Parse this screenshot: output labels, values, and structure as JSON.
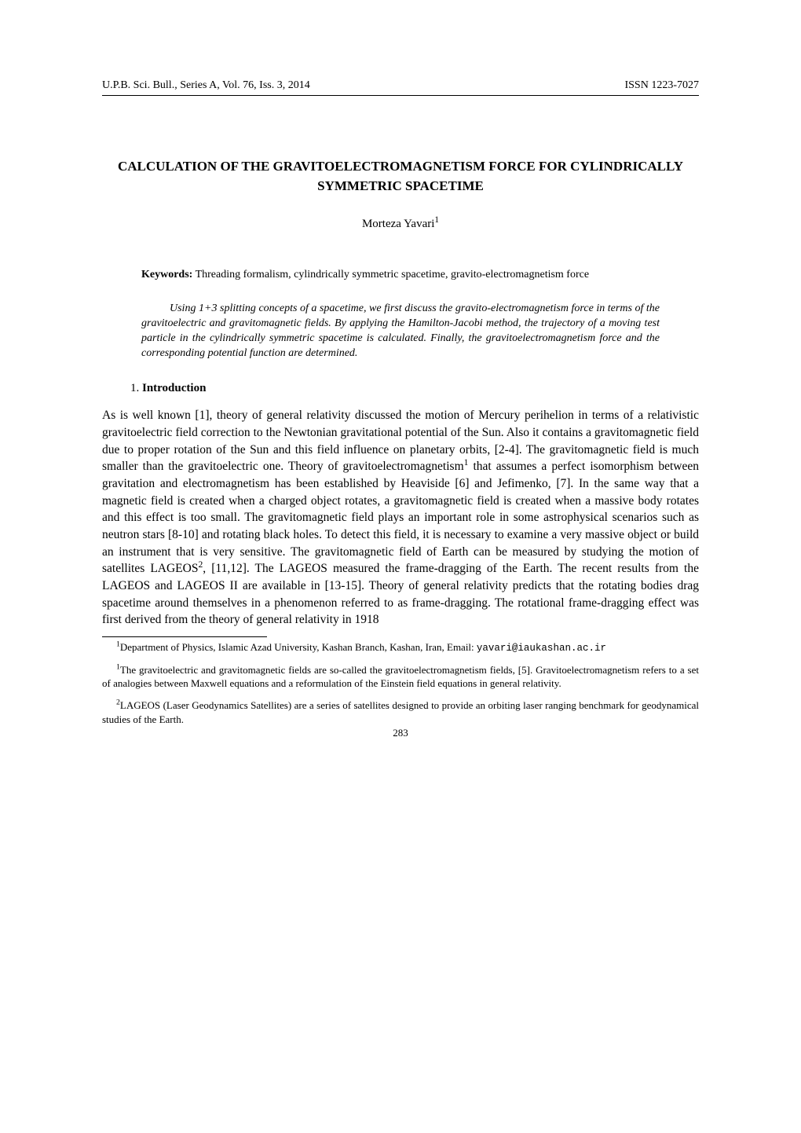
{
  "header": {
    "left": "U.P.B. Sci. Bull., Series A, Vol. 76, Iss. 3, 2014",
    "right": "ISSN 1223-7027"
  },
  "title": "CALCULATION OF THE GRAVITOELECTROMAGNETISM FORCE FOR CYLINDRICALLY SYMMETRIC SPACETIME",
  "author": "Morteza Yavari",
  "author_sup": "1",
  "keywords_label": "Keywords:",
  "keywords_text": " Threading formalism, cylindrically symmetric spacetime, gravito-electromagnetism force",
  "abstract": "Using 1+3 splitting concepts of a spacetime, we first discuss the gravito-electromagnetism force in terms of the gravitoelectric and gravitomagnetic fields. By applying the Hamilton-Jacobi method, the trajectory of a moving test particle in the cylindrically symmetric spacetime is calculated. Finally, the gravitoelectromagnetism force and the corresponding potential function are determined.",
  "section": {
    "num": "1.",
    "title": "Introduction"
  },
  "body_a": "As is well known [1], theory of general relativity discussed the motion of Mercury perihelion in terms of a relativistic gravitoelectric field correction to the Newtonian gravitational potential of the Sun. Also it contains a gravitomagnetic field due to proper rotation of the Sun and this field influence on planetary orbits, [2-4]. The gravitomagnetic field is much smaller than the gravitoelectric one. Theory of gravitoelectromagnetism",
  "body_b": " that assumes a perfect isomorphism between gravitation and electromagnetism has been established by Heaviside [6] and Jefimenko, [7]. In the same way that a magnetic field is created when a charged object rotates, a gravitomagnetic field is created when a massive body rotates and this effect is too small. The gravitomagnetic field plays an important role in some astrophysical scenarios such as neutron stars [8-10] and rotating black holes. To detect this field, it is necessary to examine a very massive object or build an instrument that is very sensitive. The gravitomagnetic field of Earth can be measured by studying the motion of satellites LAGEOS",
  "body_c": ", [11,12]. The LAGEOS measured the frame-dragging of the Earth. The recent results from the LAGEOS and LAGEOS II are available in [13-15]. Theory of general relativity predicts that the rotating bodies drag spacetime around themselves in a phenomenon referred to as frame-dragging. The rotational frame-dragging effect was first derived from the theory of general relativity in 1918",
  "sup_1": "1",
  "sup_2": "2",
  "footnotes": {
    "affil_sup": "1",
    "affil_text": "Department of Physics, Islamic Azad University, Kashan Branch, Kashan, Iran, Email: ",
    "affil_email": "yavari@iaukashan.ac.ir",
    "fn1_sup": "1",
    "fn1_text": "The gravitoelectric and gravitomagnetic fields are so-called the gravitoelectromagnetism fields, [5]. Gravitoelectromagnetism refers to a set of analogies between Maxwell equations and a reformulation of the Einstein field equations in general relativity.",
    "fn2_sup": "2",
    "fn2_text": "LAGEOS (Laser Geodynamics Satellites) are a series of satellites designed to provide an orbiting laser ranging benchmark for geodynamical studies of the Earth."
  },
  "page_number": "283"
}
